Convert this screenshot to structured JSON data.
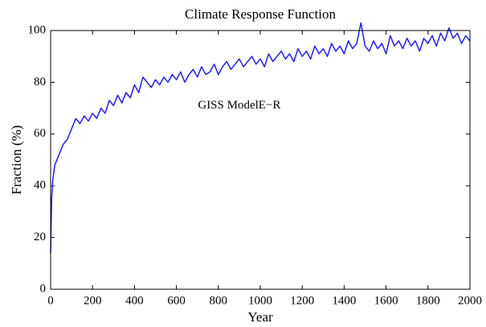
{
  "chart_data": {
    "type": "line",
    "title": "Climate Response Function",
    "xlabel": "Year",
    "ylabel": "Fraction (%)",
    "annotation": "GISS ModelE−R",
    "x": [
      0,
      5,
      10,
      20,
      40,
      60,
      80,
      100,
      120,
      140,
      160,
      180,
      200,
      220,
      240,
      260,
      280,
      300,
      320,
      340,
      360,
      380,
      400,
      420,
      440,
      460,
      480,
      500,
      520,
      540,
      560,
      580,
      600,
      620,
      640,
      660,
      680,
      700,
      720,
      740,
      760,
      780,
      800,
      820,
      840,
      860,
      880,
      900,
      920,
      940,
      960,
      980,
      1000,
      1020,
      1040,
      1060,
      1080,
      1100,
      1120,
      1140,
      1160,
      1180,
      1200,
      1220,
      1240,
      1260,
      1280,
      1300,
      1320,
      1340,
      1360,
      1380,
      1400,
      1420,
      1440,
      1460,
      1480,
      1500,
      1520,
      1540,
      1560,
      1580,
      1600,
      1620,
      1640,
      1660,
      1680,
      1700,
      1720,
      1740,
      1760,
      1780,
      1800,
      1820,
      1840,
      1860,
      1880,
      1900,
      1920,
      1940,
      1960,
      1980,
      2000
    ],
    "series": [
      {
        "color": "#1f1fff",
        "values": [
          14,
          35,
          42,
          48,
          52,
          56,
          58,
          62,
          66,
          64,
          67,
          65,
          68,
          66,
          70,
          68,
          73,
          71,
          75,
          72,
          76,
          74,
          79,
          76,
          82,
          80,
          78,
          81,
          79,
          82,
          80,
          83,
          81,
          84,
          80,
          83,
          85,
          82,
          86,
          83,
          84,
          87,
          83,
          86,
          88,
          85,
          87,
          89,
          86,
          88,
          90,
          87,
          89,
          86,
          91,
          88,
          90,
          92,
          89,
          91,
          88,
          93,
          90,
          92,
          89,
          94,
          91,
          93,
          90,
          95,
          92,
          94,
          91,
          96,
          93,
          95,
          103,
          94,
          92,
          96,
          93,
          95,
          91,
          98,
          94,
          96,
          93,
          97,
          94,
          96,
          92,
          97,
          95,
          98,
          94,
          99,
          96,
          101,
          97,
          99,
          95,
          98,
          96
        ]
      }
    ],
    "xlim": [
      0,
      2000
    ],
    "xticks": [
      0,
      200,
      400,
      600,
      800,
      1000,
      1200,
      1400,
      1600,
      1800,
      2000
    ],
    "ylim": [
      0,
      100
    ],
    "yticks": [
      0,
      20,
      40,
      60,
      80,
      100
    ],
    "grid": false
  }
}
